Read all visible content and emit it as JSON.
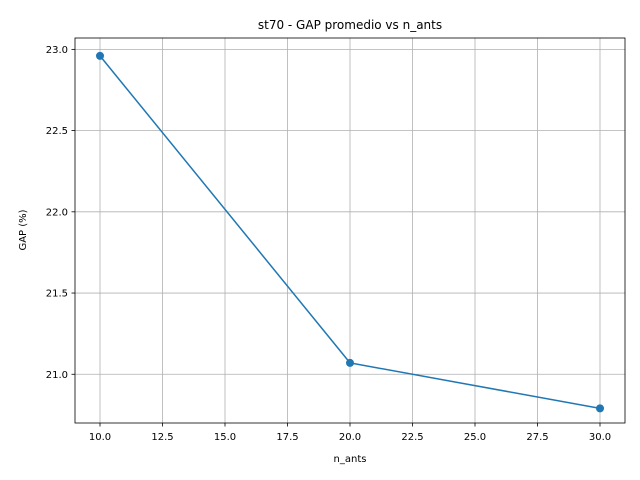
{
  "chart_data": {
    "type": "line",
    "title": "st70 - GAP promedio vs n_ants",
    "xlabel": "n_ants",
    "ylabel": "GAP (%)",
    "grid": true,
    "xlim": [
      9.0,
      31.0
    ],
    "ylim": [
      20.7,
      23.07
    ],
    "x_ticks": [
      10.0,
      12.5,
      15.0,
      17.5,
      20.0,
      22.5,
      25.0,
      27.5,
      30.0
    ],
    "x_tick_labels": [
      "10.0",
      "12.5",
      "15.0",
      "17.5",
      "20.0",
      "22.5",
      "25.0",
      "27.5",
      "30.0"
    ],
    "y_ticks": [
      21.0,
      21.5,
      22.0,
      22.5,
      23.0
    ],
    "y_tick_labels": [
      "21.0",
      "21.5",
      "22.0",
      "22.5",
      "23.0"
    ],
    "series": [
      {
        "name": "GAP promedio",
        "color": "#1f77b4",
        "marker": "circle",
        "x": [
          10,
          20,
          30
        ],
        "values": [
          22.96,
          21.07,
          20.79
        ]
      }
    ]
  }
}
